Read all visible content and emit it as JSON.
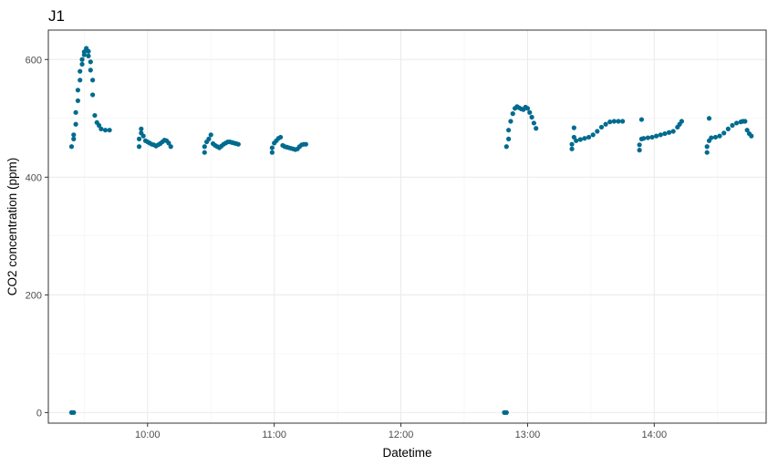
{
  "chart_data": {
    "type": "scatter",
    "title": "J1",
    "xlabel": "Datetime",
    "ylabel": "CO2 concentration (ppm)",
    "x_type": "time",
    "xlim": [
      "09:13",
      "14:53"
    ],
    "ylim": [
      -18,
      650
    ],
    "x_ticks": [
      "10:00",
      "11:00",
      "12:00",
      "13:00",
      "14:00"
    ],
    "y_ticks": [
      0,
      200,
      400,
      600
    ],
    "grid": true,
    "point_color": "#006B8F",
    "series": [
      {
        "points": [
          [
            "09:24",
            0
          ],
          [
            "09:25",
            0
          ],
          [
            "09:24",
            452
          ],
          [
            "09:25",
            465
          ],
          [
            "09:25",
            472
          ],
          [
            "09:26",
            490
          ],
          [
            "09:26",
            510
          ],
          [
            "09:27",
            530
          ],
          [
            "09:27",
            548
          ],
          [
            "09:28",
            565
          ],
          [
            "09:28",
            580
          ],
          [
            "09:29",
            592
          ],
          [
            "09:29",
            600
          ],
          [
            "09:30",
            608
          ],
          [
            "09:30",
            613
          ],
          [
            "09:31",
            617
          ],
          [
            "09:31",
            619
          ],
          [
            "09:32",
            614
          ],
          [
            "09:32",
            606
          ],
          [
            "09:33",
            596
          ],
          [
            "09:33",
            582
          ],
          [
            "09:34",
            565
          ],
          [
            "09:34",
            540
          ],
          [
            "09:35",
            505
          ],
          [
            "09:36",
            493
          ],
          [
            "09:37",
            488
          ],
          [
            "09:38",
            482
          ],
          [
            "09:40",
            480
          ],
          [
            "09:42",
            480
          ],
          [
            "09:56",
            452
          ],
          [
            "09:56",
            465
          ],
          [
            "09:57",
            475
          ],
          [
            "09:57",
            482
          ],
          [
            "09:58",
            470
          ],
          [
            "09:59",
            462
          ],
          [
            "10:00",
            460
          ],
          [
            "10:01",
            458
          ],
          [
            "10:02",
            456
          ],
          [
            "10:03",
            455
          ],
          [
            "10:04",
            453
          ],
          [
            "10:05",
            455
          ],
          [
            "10:06",
            457
          ],
          [
            "10:07",
            460
          ],
          [
            "10:08",
            463
          ],
          [
            "10:09",
            462
          ],
          [
            "10:10",
            458
          ],
          [
            "10:11",
            452
          ],
          [
            "10:27",
            442
          ],
          [
            "10:27",
            452
          ],
          [
            "10:28",
            460
          ],
          [
            "10:29",
            465
          ],
          [
            "10:30",
            472
          ],
          [
            "10:31",
            457
          ],
          [
            "10:32",
            454
          ],
          [
            "10:33",
            452
          ],
          [
            "10:34",
            450
          ],
          [
            "10:35",
            453
          ],
          [
            "10:36",
            456
          ],
          [
            "10:37",
            458
          ],
          [
            "10:38",
            460
          ],
          [
            "10:39",
            460
          ],
          [
            "10:40",
            459
          ],
          [
            "10:41",
            458
          ],
          [
            "10:42",
            457
          ],
          [
            "10:43",
            456
          ],
          [
            "10:59",
            442
          ],
          [
            "10:59",
            450
          ],
          [
            "11:00",
            458
          ],
          [
            "11:01",
            462
          ],
          [
            "11:02",
            466
          ],
          [
            "11:03",
            468
          ],
          [
            "11:04",
            454
          ],
          [
            "11:05",
            452
          ],
          [
            "11:06",
            451
          ],
          [
            "11:07",
            450
          ],
          [
            "11:08",
            449
          ],
          [
            "11:09",
            448
          ],
          [
            "11:10",
            447
          ],
          [
            "11:11",
            448
          ],
          [
            "11:12",
            452
          ],
          [
            "11:13",
            455
          ],
          [
            "11:14",
            456
          ],
          [
            "11:15",
            456
          ],
          [
            "12:49",
            0
          ],
          [
            "12:50",
            0
          ],
          [
            "12:50",
            452
          ],
          [
            "12:51",
            465
          ],
          [
            "12:51",
            480
          ],
          [
            "12:52",
            495
          ],
          [
            "12:53",
            508
          ],
          [
            "12:54",
            517
          ],
          [
            "12:55",
            520
          ],
          [
            "12:56",
            518
          ],
          [
            "12:57",
            516
          ],
          [
            "12:58",
            515
          ],
          [
            "12:59",
            519
          ],
          [
            "13:00",
            517
          ],
          [
            "13:01",
            510
          ],
          [
            "13:02",
            502
          ],
          [
            "13:03",
            492
          ],
          [
            "13:04",
            483
          ],
          [
            "13:21",
            448
          ],
          [
            "13:21",
            456
          ],
          [
            "13:22",
            468
          ],
          [
            "13:22",
            484
          ],
          [
            "13:23",
            462
          ],
          [
            "13:25",
            464
          ],
          [
            "13:27",
            466
          ],
          [
            "13:29",
            468
          ],
          [
            "13:31",
            472
          ],
          [
            "13:33",
            478
          ],
          [
            "13:35",
            485
          ],
          [
            "13:37",
            490
          ],
          [
            "13:39",
            494
          ],
          [
            "13:41",
            495
          ],
          [
            "13:43",
            495
          ],
          [
            "13:45",
            495
          ],
          [
            "13:53",
            446
          ],
          [
            "13:53",
            455
          ],
          [
            "13:54",
            465
          ],
          [
            "13:54",
            498
          ],
          [
            "13:55",
            466
          ],
          [
            "13:57",
            467
          ],
          [
            "13:59",
            468
          ],
          [
            "14:01",
            470
          ],
          [
            "14:03",
            472
          ],
          [
            "14:05",
            474
          ],
          [
            "14:07",
            476
          ],
          [
            "14:09",
            478
          ],
          [
            "14:11",
            485
          ],
          [
            "14:12",
            490
          ],
          [
            "14:13",
            495
          ],
          [
            "14:25",
            442
          ],
          [
            "14:25",
            452
          ],
          [
            "14:26",
            462
          ],
          [
            "14:26",
            500
          ],
          [
            "14:27",
            467
          ],
          [
            "14:29",
            468
          ],
          [
            "14:31",
            470
          ],
          [
            "14:33",
            475
          ],
          [
            "14:35",
            482
          ],
          [
            "14:37",
            488
          ],
          [
            "14:39",
            492
          ],
          [
            "14:41",
            494
          ],
          [
            "14:42",
            495
          ],
          [
            "14:43",
            495
          ],
          [
            "14:44",
            480
          ],
          [
            "14:45",
            474
          ],
          [
            "14:46",
            470
          ]
        ]
      }
    ]
  }
}
